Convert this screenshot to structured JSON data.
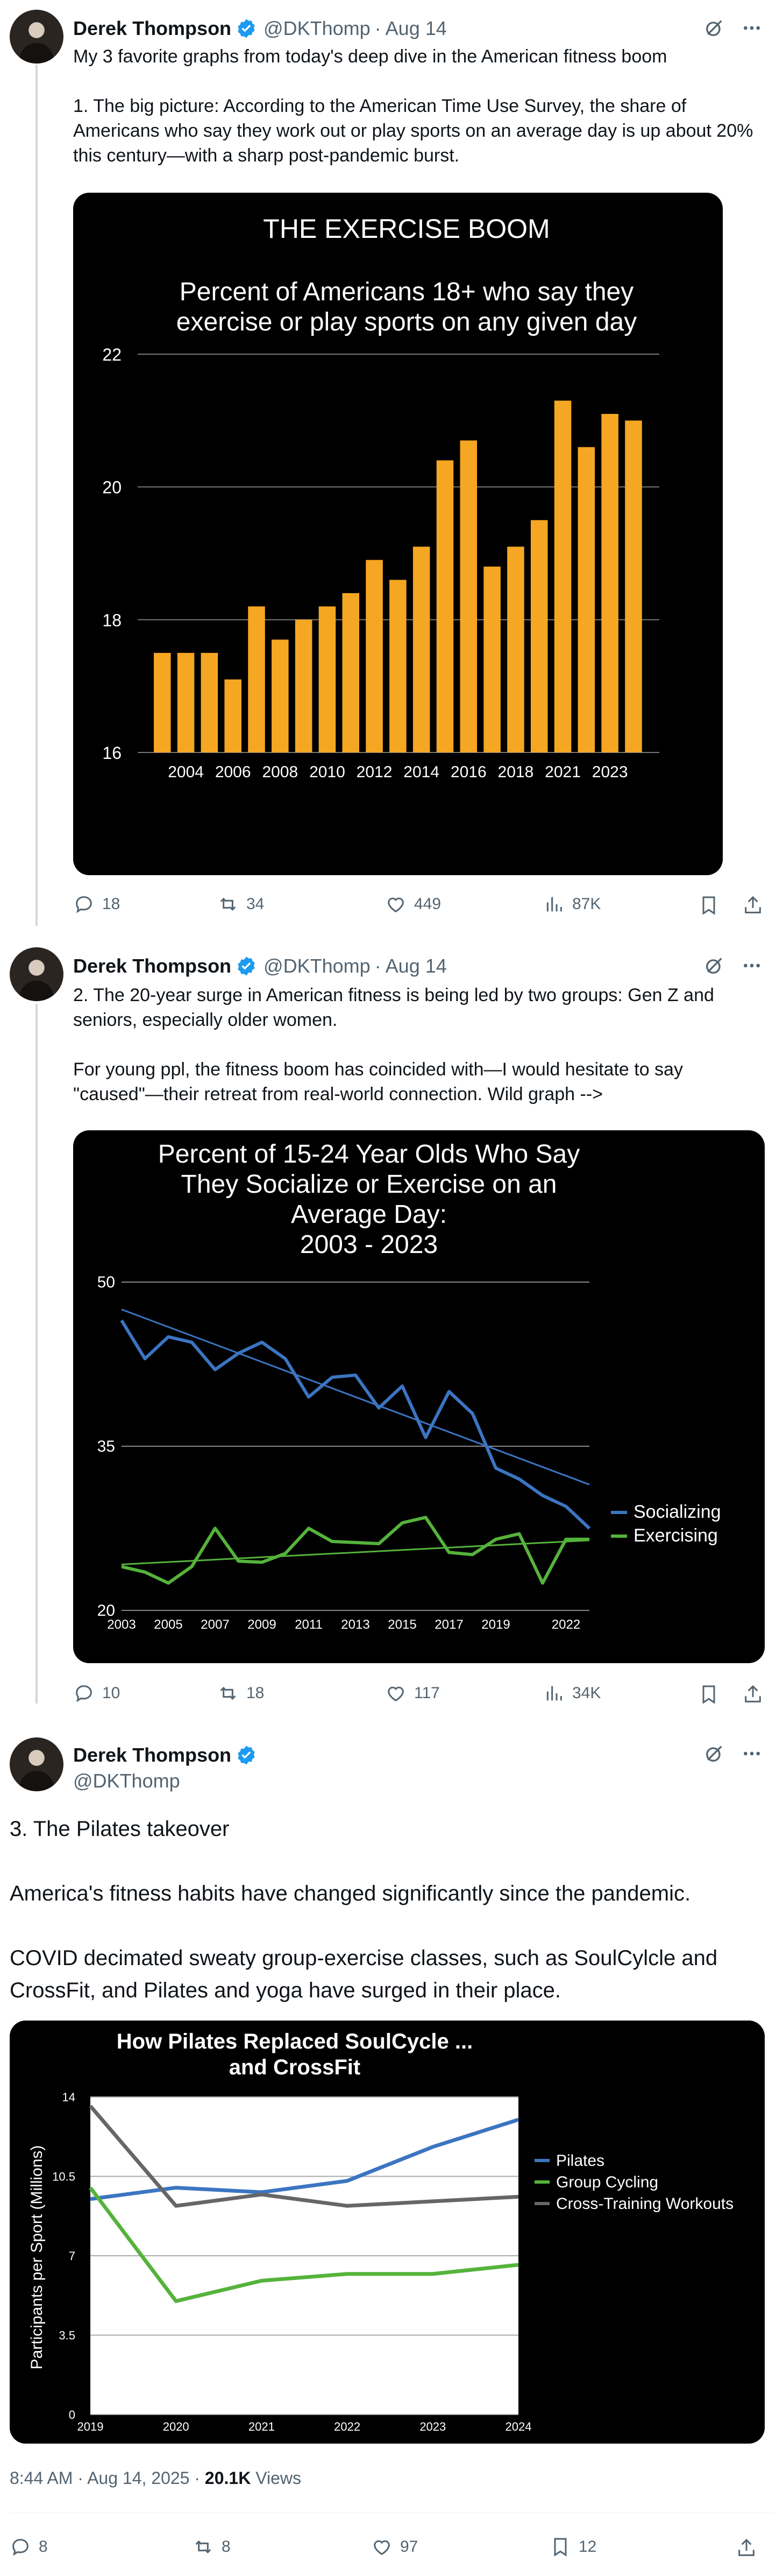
{
  "tweets": [
    {
      "name": "Derek Thompson",
      "handle": "@DKThomp",
      "date": "Aug 14",
      "text": "My 3 favorite graphs from today's deep dive in the American fitness boom\n\n1. The big picture: According to the American Time Use Survey, the share of Americans who say they work out or play sports on an average day is up about 20% this century—with a sharp post-pandemic burst.",
      "replies": "18",
      "reposts": "34",
      "likes": "449",
      "views": "87K"
    },
    {
      "name": "Derek Thompson",
      "handle": "@DKThomp",
      "date": "Aug 14",
      "text": "2. The 20-year surge in American fitness is being led by two groups: Gen Z and seniors, especially older women.\n\nFor young ppl, the fitness boom has coincided with—I would hesitate to say \"caused\"—their retreat from real-world connection. Wild graph -->",
      "replies": "10",
      "reposts": "18",
      "likes": "117",
      "views": "34K"
    },
    {
      "name": "Derek Thompson",
      "handle": "@DKThomp",
      "text": "3. The Pilates takeover\n\nAmerica's fitness habits have changed significantly since the pandemic.\n\nCOVID decimated sweaty group-exercise classes, such as SoulCylcle and CrossFit, and Pilates and yoga have surged in their place.",
      "timestamp": "8:44 AM · Aug 14, 2025 · ",
      "view_count": "20.1K",
      "views_label": " Views",
      "replies": "8",
      "reposts": "8",
      "likes": "97",
      "bookmarks": "12"
    }
  ],
  "icons": [
    "verified-badge-icon",
    "grok-icon",
    "more-icon",
    "reply-icon",
    "repost-icon",
    "like-icon",
    "views-icon",
    "bookmark-icon",
    "share-icon"
  ],
  "colors": {
    "verified": "#1d9bf0",
    "bar": "#f5a623",
    "socializing": "#3b75c2",
    "exercising": "#55b33b",
    "crosstraining": "#666666"
  },
  "chart_data": [
    {
      "type": "bar",
      "title": "THE EXERCISE BOOM",
      "subtitle": "Percent of Americans 18+ who say they exercise or play sports on any given day",
      "categories": [
        "2003",
        "2004",
        "2005",
        "2006",
        "2007",
        "2008",
        "2009",
        "2010",
        "2011",
        "2012",
        "2013",
        "2014",
        "2015",
        "2016",
        "2017",
        "2018",
        "2019",
        "2021",
        "2022",
        "2023",
        "2024"
      ],
      "tick_labels": [
        "2004",
        "2006",
        "2008",
        "2010",
        "2012",
        "2014",
        "2016",
        "2018",
        "2021",
        "2023"
      ],
      "values": [
        17.5,
        17.5,
        17.5,
        17.1,
        18.2,
        17.7,
        18.0,
        18.2,
        18.4,
        18.9,
        18.6,
        19.1,
        20.4,
        20.7,
        18.8,
        19.1,
        19.5,
        21.3,
        20.6,
        21.1,
        21.0
      ],
      "ylim": [
        16,
        22
      ],
      "yticks": [
        "16",
        "18",
        "20",
        "22"
      ],
      "grid": true
    },
    {
      "type": "line",
      "title": "Percent of 15-24 Year Olds Who Say They Socialize or Exercise on an Average Day: 2003 - 2023",
      "x": [
        2003,
        2004,
        2005,
        2006,
        2007,
        2008,
        2009,
        2010,
        2011,
        2012,
        2013,
        2014,
        2015,
        2016,
        2017,
        2018,
        2019,
        2020,
        2021,
        2022,
        2023
      ],
      "tick_labels": [
        "2003",
        "2005",
        "2007",
        "2009",
        "2011",
        "2013",
        "2015",
        "2017",
        "2019",
        "2022"
      ],
      "series": [
        {
          "name": "Socializing",
          "values": [
            46.5,
            43,
            45,
            44.5,
            42,
            43.5,
            44.5,
            43,
            39.5,
            41.3,
            41.5,
            38.5,
            40.5,
            35.8,
            40,
            38,
            33,
            32,
            30.5,
            29.5,
            27.5
          ]
        },
        {
          "name": "Exercising",
          "values": [
            24,
            23.5,
            22.5,
            24,
            27.5,
            24.5,
            24.4,
            25.2,
            27.5,
            26.3,
            26.2,
            26.1,
            28,
            28.5,
            25.3,
            25.1,
            26.5,
            27,
            22.5,
            26.5,
            26.5
          ]
        }
      ],
      "trendlines": {
        "Socializing": [
          47.5,
          31.5
        ],
        "Exercising": [
          24.2,
          26.4
        ]
      },
      "ylim": [
        20,
        50
      ],
      "yticks": [
        "20",
        "35",
        "50"
      ],
      "legend": "right",
      "grid": true
    },
    {
      "type": "line",
      "title": "How Pilates Replaced SoulCycle ... and CrossFit",
      "ylabel": "Participants per Sport (Millions)",
      "x": [
        "2019",
        "2020",
        "2021",
        "2022",
        "2023",
        "2024"
      ],
      "series": [
        {
          "name": "Pilates",
          "values": [
            9.5,
            10,
            9.8,
            10.3,
            11.8,
            13
          ]
        },
        {
          "name": "Group Cycling",
          "values": [
            10,
            5,
            5.9,
            6.2,
            6.2,
            6.6
          ]
        },
        {
          "name": "Cross-Training Workouts",
          "values": [
            13.6,
            9.2,
            9.7,
            9.2,
            9.4,
            9.6
          ]
        }
      ],
      "ylim": [
        0,
        14
      ],
      "yticks": [
        "0",
        "3.5",
        "7",
        "10.5",
        "14"
      ],
      "legend": "right",
      "grid": true
    }
  ]
}
